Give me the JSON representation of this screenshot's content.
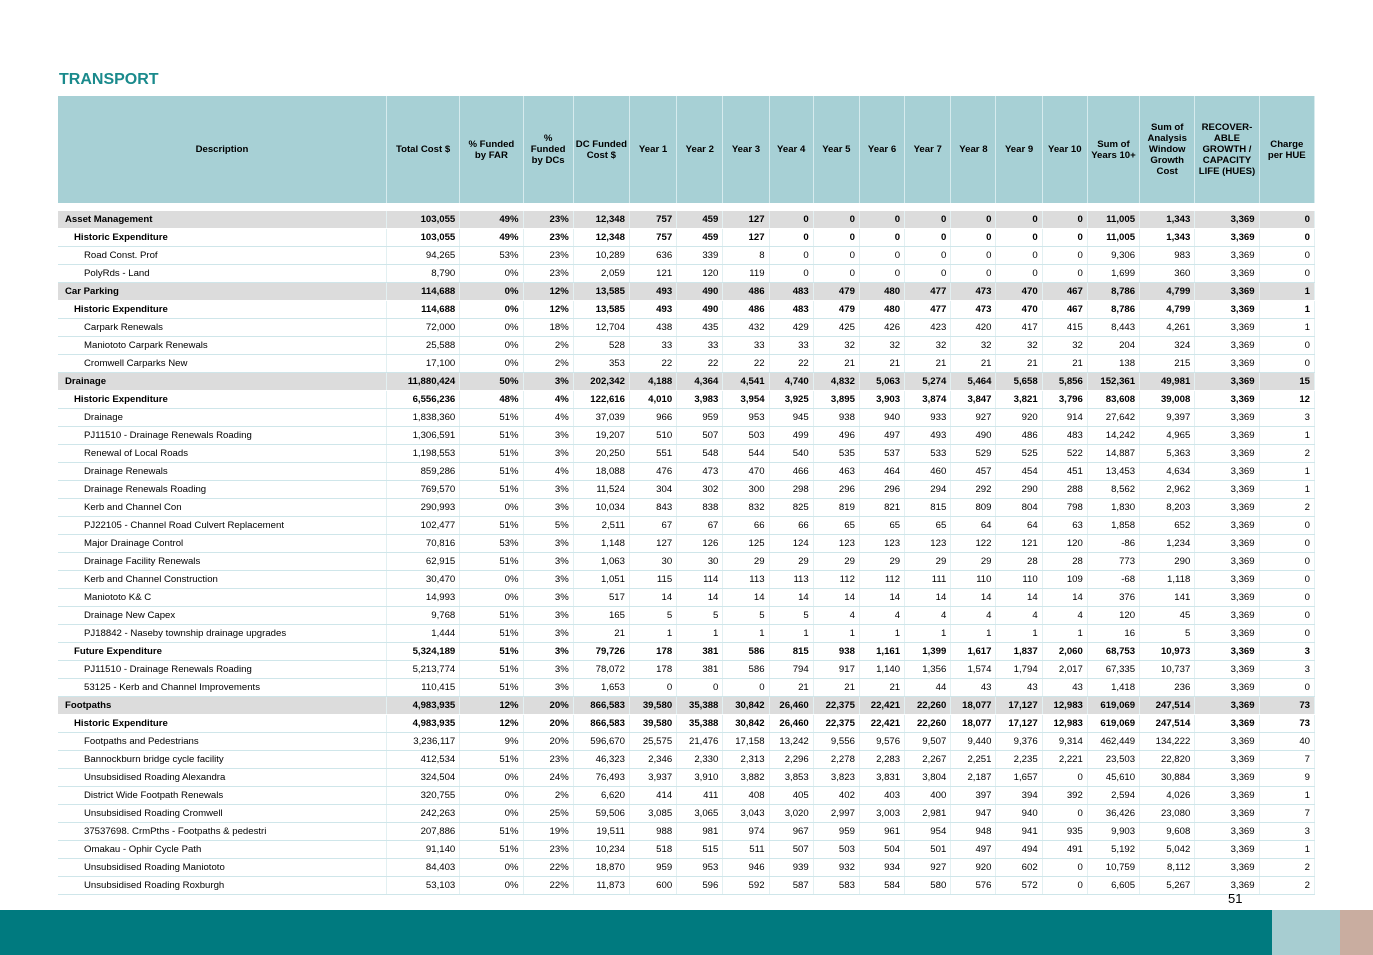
{
  "title": "TRANSPORT",
  "page_number": "51",
  "columns": [
    "Description",
    "Total Cost $",
    "% Funded by FAR",
    "% Funded by DCs",
    "DC Funded Cost $",
    "Year 1",
    "Year 2",
    "Year 3",
    "Year 4",
    "Year 5",
    "Year 6",
    "Year 7",
    "Year 8",
    "Year 9",
    "Year 10",
    "Sum of Years 10+",
    "Sum of Analysis Window Growth Cost",
    "RECOVER-ABLE GROWTH / CAPACITY LIFE (HUES)",
    "Charge per HUE"
  ],
  "rows": [
    {
      "level": 0,
      "cells": [
        "Asset Management",
        "103,055",
        "49%",
        "23%",
        "12,348",
        "757",
        "459",
        "127",
        "0",
        "0",
        "0",
        "0",
        "0",
        "0",
        "0",
        "11,005",
        "1,343",
        "3,369",
        "0"
      ]
    },
    {
      "level": 1,
      "cells": [
        "Historic Expenditure",
        "103,055",
        "49%",
        "23%",
        "12,348",
        "757",
        "459",
        "127",
        "0",
        "0",
        "0",
        "0",
        "0",
        "0",
        "0",
        "11,005",
        "1,343",
        "3,369",
        "0"
      ]
    },
    {
      "level": 2,
      "cells": [
        "Road Const. Prof",
        "94,265",
        "53%",
        "23%",
        "10,289",
        "636",
        "339",
        "8",
        "0",
        "0",
        "0",
        "0",
        "0",
        "0",
        "0",
        "9,306",
        "983",
        "3,369",
        "0"
      ]
    },
    {
      "level": 2,
      "cells": [
        "PolyRds - Land",
        "8,790",
        "0%",
        "23%",
        "2,059",
        "121",
        "120",
        "119",
        "0",
        "0",
        "0",
        "0",
        "0",
        "0",
        "0",
        "1,699",
        "360",
        "3,369",
        "0"
      ]
    },
    {
      "level": 0,
      "cells": [
        "Car Parking",
        "114,688",
        "0%",
        "12%",
        "13,585",
        "493",
        "490",
        "486",
        "483",
        "479",
        "480",
        "477",
        "473",
        "470",
        "467",
        "8,786",
        "4,799",
        "3,369",
        "1"
      ]
    },
    {
      "level": 1,
      "cells": [
        "Historic Expenditure",
        "114,688",
        "0%",
        "12%",
        "13,585",
        "493",
        "490",
        "486",
        "483",
        "479",
        "480",
        "477",
        "473",
        "470",
        "467",
        "8,786",
        "4,799",
        "3,369",
        "1"
      ]
    },
    {
      "level": 2,
      "cells": [
        "Carpark Renewals",
        "72,000",
        "0%",
        "18%",
        "12,704",
        "438",
        "435",
        "432",
        "429",
        "425",
        "426",
        "423",
        "420",
        "417",
        "415",
        "8,443",
        "4,261",
        "3,369",
        "1"
      ]
    },
    {
      "level": 2,
      "cells": [
        "Maniototo Carpark Renewals",
        "25,588",
        "0%",
        "2%",
        "528",
        "33",
        "33",
        "33",
        "33",
        "32",
        "32",
        "32",
        "32",
        "32",
        "32",
        "204",
        "324",
        "3,369",
        "0"
      ]
    },
    {
      "level": 2,
      "cells": [
        "Cromwell Carparks New",
        "17,100",
        "0%",
        "2%",
        "353",
        "22",
        "22",
        "22",
        "22",
        "21",
        "21",
        "21",
        "21",
        "21",
        "21",
        "138",
        "215",
        "3,369",
        "0"
      ]
    },
    {
      "level": 0,
      "cells": [
        "Drainage",
        "11,880,424",
        "50%",
        "3%",
        "202,342",
        "4,188",
        "4,364",
        "4,541",
        "4,740",
        "4,832",
        "5,063",
        "5,274",
        "5,464",
        "5,658",
        "5,856",
        "152,361",
        "49,981",
        "3,369",
        "15"
      ]
    },
    {
      "level": 1,
      "cells": [
        "Historic Expenditure",
        "6,556,236",
        "48%",
        "4%",
        "122,616",
        "4,010",
        "3,983",
        "3,954",
        "3,925",
        "3,895",
        "3,903",
        "3,874",
        "3,847",
        "3,821",
        "3,796",
        "83,608",
        "39,008",
        "3,369",
        "12"
      ]
    },
    {
      "level": 2,
      "cells": [
        "Drainage",
        "1,838,360",
        "51%",
        "4%",
        "37,039",
        "966",
        "959",
        "953",
        "945",
        "938",
        "940",
        "933",
        "927",
        "920",
        "914",
        "27,642",
        "9,397",
        "3,369",
        "3"
      ]
    },
    {
      "level": 2,
      "cells": [
        "PJ11510 - Drainage Renewals Roading",
        "1,306,591",
        "51%",
        "3%",
        "19,207",
        "510",
        "507",
        "503",
        "499",
        "496",
        "497",
        "493",
        "490",
        "486",
        "483",
        "14,242",
        "4,965",
        "3,369",
        "1"
      ]
    },
    {
      "level": 2,
      "cells": [
        "Renewal of Local Roads",
        "1,198,553",
        "51%",
        "3%",
        "20,250",
        "551",
        "548",
        "544",
        "540",
        "535",
        "537",
        "533",
        "529",
        "525",
        "522",
        "14,887",
        "5,363",
        "3,369",
        "2"
      ]
    },
    {
      "level": 2,
      "cells": [
        "Drainage Renewals",
        "859,286",
        "51%",
        "4%",
        "18,088",
        "476",
        "473",
        "470",
        "466",
        "463",
        "464",
        "460",
        "457",
        "454",
        "451",
        "13,453",
        "4,634",
        "3,369",
        "1"
      ]
    },
    {
      "level": 2,
      "cells": [
        "Drainage Renewals Roading",
        "769,570",
        "51%",
        "3%",
        "11,524",
        "304",
        "302",
        "300",
        "298",
        "296",
        "296",
        "294",
        "292",
        "290",
        "288",
        "8,562",
        "2,962",
        "3,369",
        "1"
      ]
    },
    {
      "level": 2,
      "cells": [
        "Kerb and Channel Con",
        "290,993",
        "0%",
        "3%",
        "10,034",
        "843",
        "838",
        "832",
        "825",
        "819",
        "821",
        "815",
        "809",
        "804",
        "798",
        "1,830",
        "8,203",
        "3,369",
        "2"
      ]
    },
    {
      "level": 2,
      "cells": [
        "PJ22105 - Channel Road Culvert Replacement",
        "102,477",
        "51%",
        "5%",
        "2,511",
        "67",
        "67",
        "66",
        "66",
        "65",
        "65",
        "65",
        "64",
        "64",
        "63",
        "1,858",
        "652",
        "3,369",
        "0"
      ]
    },
    {
      "level": 2,
      "cells": [
        "Major Drainage Control",
        "70,816",
        "53%",
        "3%",
        "1,148",
        "127",
        "126",
        "125",
        "124",
        "123",
        "123",
        "123",
        "122",
        "121",
        "120",
        "-86",
        "1,234",
        "3,369",
        "0"
      ]
    },
    {
      "level": 2,
      "cells": [
        "Drainage Facility Renewals",
        "62,915",
        "51%",
        "3%",
        "1,063",
        "30",
        "30",
        "29",
        "29",
        "29",
        "29",
        "29",
        "29",
        "28",
        "28",
        "773",
        "290",
        "3,369",
        "0"
      ]
    },
    {
      "level": 2,
      "cells": [
        "Kerb and Channel Construction",
        "30,470",
        "0%",
        "3%",
        "1,051",
        "115",
        "114",
        "113",
        "113",
        "112",
        "112",
        "111",
        "110",
        "110",
        "109",
        "-68",
        "1,118",
        "3,369",
        "0"
      ]
    },
    {
      "level": 2,
      "cells": [
        "Maniototo K& C",
        "14,993",
        "0%",
        "3%",
        "517",
        "14",
        "14",
        "14",
        "14",
        "14",
        "14",
        "14",
        "14",
        "14",
        "14",
        "376",
        "141",
        "3,369",
        "0"
      ]
    },
    {
      "level": 2,
      "cells": [
        "Drainage New Capex",
        "9,768",
        "51%",
        "3%",
        "165",
        "5",
        "5",
        "5",
        "5",
        "4",
        "4",
        "4",
        "4",
        "4",
        "4",
        "120",
        "45",
        "3,369",
        "0"
      ]
    },
    {
      "level": 2,
      "cells": [
        "PJ18842 - Naseby township drainage upgrades",
        "1,444",
        "51%",
        "3%",
        "21",
        "1",
        "1",
        "1",
        "1",
        "1",
        "1",
        "1",
        "1",
        "1",
        "1",
        "16",
        "5",
        "3,369",
        "0"
      ]
    },
    {
      "level": 1,
      "cells": [
        "Future Expenditure",
        "5,324,189",
        "51%",
        "3%",
        "79,726",
        "178",
        "381",
        "586",
        "815",
        "938",
        "1,161",
        "1,399",
        "1,617",
        "1,837",
        "2,060",
        "68,753",
        "10,973",
        "3,369",
        "3"
      ]
    },
    {
      "level": 2,
      "cells": [
        "PJ11510 - Drainage Renewals Roading",
        "5,213,774",
        "51%",
        "3%",
        "78,072",
        "178",
        "381",
        "586",
        "794",
        "917",
        "1,140",
        "1,356",
        "1,574",
        "1,794",
        "2,017",
        "67,335",
        "10,737",
        "3,369",
        "3"
      ]
    },
    {
      "level": 2,
      "cells": [
        "53125 - Kerb and Channel Improvements",
        "110,415",
        "51%",
        "3%",
        "1,653",
        "0",
        "0",
        "0",
        "21",
        "21",
        "21",
        "44",
        "43",
        "43",
        "43",
        "1,418",
        "236",
        "3,369",
        "0"
      ]
    },
    {
      "level": 0,
      "cells": [
        "Footpaths",
        "4,983,935",
        "12%",
        "20%",
        "866,583",
        "39,580",
        "35,388",
        "30,842",
        "26,460",
        "22,375",
        "22,421",
        "22,260",
        "18,077",
        "17,127",
        "12,983",
        "619,069",
        "247,514",
        "3,369",
        "73"
      ]
    },
    {
      "level": 1,
      "cells": [
        "Historic Expenditure",
        "4,983,935",
        "12%",
        "20%",
        "866,583",
        "39,580",
        "35,388",
        "30,842",
        "26,460",
        "22,375",
        "22,421",
        "22,260",
        "18,077",
        "17,127",
        "12,983",
        "619,069",
        "247,514",
        "3,369",
        "73"
      ]
    },
    {
      "level": 2,
      "cells": [
        "Footpaths and Pedestrians",
        "3,236,117",
        "9%",
        "20%",
        "596,670",
        "25,575",
        "21,476",
        "17,158",
        "13,242",
        "9,556",
        "9,576",
        "9,507",
        "9,440",
        "9,376",
        "9,314",
        "462,449",
        "134,222",
        "3,369",
        "40"
      ]
    },
    {
      "level": 2,
      "cells": [
        "Bannockburn bridge cycle facility",
        "412,534",
        "51%",
        "23%",
        "46,323",
        "2,346",
        "2,330",
        "2,313",
        "2,296",
        "2,278",
        "2,283",
        "2,267",
        "2,251",
        "2,235",
        "2,221",
        "23,503",
        "22,820",
        "3,369",
        "7"
      ]
    },
    {
      "level": 2,
      "cells": [
        "Unsubsidised Roading Alexandra",
        "324,504",
        "0%",
        "24%",
        "76,493",
        "3,937",
        "3,910",
        "3,882",
        "3,853",
        "3,823",
        "3,831",
        "3,804",
        "2,187",
        "1,657",
        "0",
        "45,610",
        "30,884",
        "3,369",
        "9"
      ]
    },
    {
      "level": 2,
      "cells": [
        "District Wide Footpath Renewals",
        "320,755",
        "0%",
        "2%",
        "6,620",
        "414",
        "411",
        "408",
        "405",
        "402",
        "403",
        "400",
        "397",
        "394",
        "392",
        "2,594",
        "4,026",
        "3,369",
        "1"
      ]
    },
    {
      "level": 2,
      "cells": [
        "Unsubsidised Roading Cromwell",
        "242,263",
        "0%",
        "25%",
        "59,506",
        "3,085",
        "3,065",
        "3,043",
        "3,020",
        "2,997",
        "3,003",
        "2,981",
        "947",
        "940",
        "0",
        "36,426",
        "23,080",
        "3,369",
        "7"
      ]
    },
    {
      "level": 2,
      "cells": [
        "37537698. CrmPths - Footpaths & pedestri",
        "207,886",
        "51%",
        "19%",
        "19,511",
        "988",
        "981",
        "974",
        "967",
        "959",
        "961",
        "954",
        "948",
        "941",
        "935",
        "9,903",
        "9,608",
        "3,369",
        "3"
      ]
    },
    {
      "level": 2,
      "cells": [
        "Omakau - Ophir Cycle Path",
        "91,140",
        "51%",
        "23%",
        "10,234",
        "518",
        "515",
        "511",
        "507",
        "503",
        "504",
        "501",
        "497",
        "494",
        "491",
        "5,192",
        "5,042",
        "3,369",
        "1"
      ]
    },
    {
      "level": 2,
      "cells": [
        "Unsubsidised Roading Maniototo",
        "84,403",
        "0%",
        "22%",
        "18,870",
        "959",
        "953",
        "946",
        "939",
        "932",
        "934",
        "927",
        "920",
        "602",
        "0",
        "10,759",
        "8,112",
        "3,369",
        "2"
      ]
    },
    {
      "level": 2,
      "cells": [
        "Unsubsidised Roading Roxburgh",
        "53,103",
        "0%",
        "22%",
        "11,873",
        "600",
        "596",
        "592",
        "587",
        "583",
        "584",
        "580",
        "576",
        "572",
        "0",
        "6,605",
        "5,267",
        "3,369",
        "2"
      ]
    }
  ]
}
